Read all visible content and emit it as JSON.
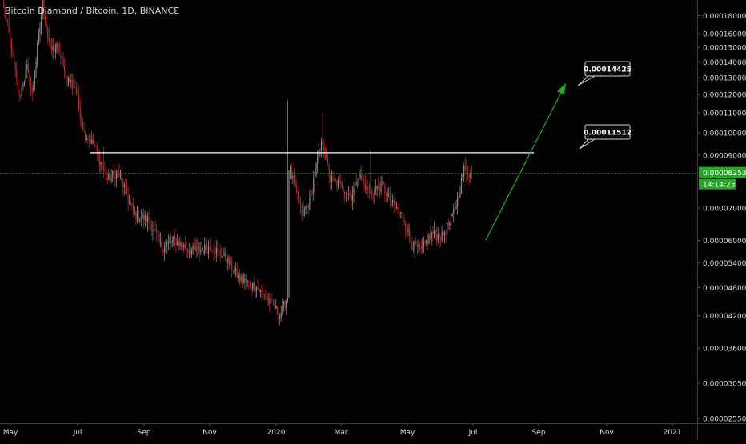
{
  "header": {
    "symbol_title": "Bitcoin Diamond / Bitcoin, 1D, BINANCE"
  },
  "colors": {
    "background": "#000000",
    "up_candle": "#8c8c8c",
    "down_candle": "#b02a2a",
    "price_line": "#1e8c1e",
    "price_tag": "#26a626",
    "resistance_line": "#ffffff",
    "arrow": "#28a828",
    "axis_text": "#d8d8d8",
    "callout_bg": "#0a0a0a"
  },
  "price_axis": {
    "labels": [
      "0.00018000",
      "0.00016000",
      "0.00015000",
      "0.00014000",
      "0.00013000",
      "0.00012000",
      "0.00011000",
      "0.00010000",
      "0.00009000",
      "0.00007000",
      "0.00006000",
      "0.00005400",
      "0.00004800",
      "0.00004200",
      "0.00003600",
      "0.00003050",
      "0.00002550"
    ]
  },
  "time_axis": {
    "labels": [
      "May",
      "Jul",
      "Sep",
      "Nov",
      "2020",
      "Mar",
      "May",
      "Jul",
      "Sep",
      "Nov",
      "2021"
    ]
  },
  "current_price": {
    "value": "0.00008253",
    "countdown": "14:14:23"
  },
  "annotations": {
    "target_1": "0.00014425",
    "target_2": "0.00011512",
    "resistance": 9.1e-05
  },
  "chart_data": {
    "type": "candlestick",
    "title": "Bitcoin Diamond / Bitcoin, 1D, BINANCE",
    "y_scale": "log",
    "ylim": [
      2.55e-05,
      0.000185
    ],
    "x_ticks": [
      "May",
      "Jul",
      "Sep",
      "Nov",
      "2020",
      "Mar",
      "May",
      "Jul",
      "Sep",
      "Nov",
      "2021"
    ],
    "anchors_close": [
      [
        0,
        0.00018
      ],
      [
        5,
        0.000155
      ],
      [
        12,
        0.000118
      ],
      [
        18,
        0.000136
      ],
      [
        22,
        0.00012
      ],
      [
        30,
        0.000185
      ],
      [
        36,
        0.000148
      ],
      [
        42,
        0.00015
      ],
      [
        48,
        0.00013
      ],
      [
        55,
        0.000125
      ],
      [
        62,
        0.0001
      ],
      [
        70,
        9.4e-05
      ],
      [
        80,
        8e-05
      ],
      [
        88,
        8.3e-05
      ],
      [
        94,
        7.6e-05
      ],
      [
        100,
        6.8e-05
      ],
      [
        112,
        6.6e-05
      ],
      [
        122,
        5.8e-05
      ],
      [
        132,
        6e-05
      ],
      [
        145,
        5.7e-05
      ],
      [
        160,
        5.8e-05
      ],
      [
        172,
        5.5e-05
      ],
      [
        182,
        5e-05
      ],
      [
        195,
        4.8e-05
      ],
      [
        208,
        4.4e-05
      ],
      [
        213,
        4.2e-05
      ],
      [
        219,
        4.6e-05
      ],
      [
        220,
        8.5e-05
      ],
      [
        224,
        7.8e-05
      ],
      [
        230,
        6.8e-05
      ],
      [
        236,
        7.2e-05
      ],
      [
        242,
        8.8e-05
      ],
      [
        246,
        9.6e-05
      ],
      [
        252,
        8e-05
      ],
      [
        260,
        7.8e-05
      ],
      [
        268,
        7.4e-05
      ],
      [
        274,
        8.2e-05
      ],
      [
        282,
        7.5e-05
      ],
      [
        292,
        7.8e-05
      ],
      [
        300,
        7.1e-05
      ],
      [
        308,
        6.7e-05
      ],
      [
        315,
        5.9e-05
      ],
      [
        322,
        5.7e-05
      ],
      [
        330,
        6.2e-05
      ],
      [
        338,
        6.1e-05
      ],
      [
        345,
        6.6e-05
      ],
      [
        350,
        7.3e-05
      ],
      [
        355,
        8.4e-05
      ],
      [
        361,
        8.2e-05
      ]
    ]
  }
}
